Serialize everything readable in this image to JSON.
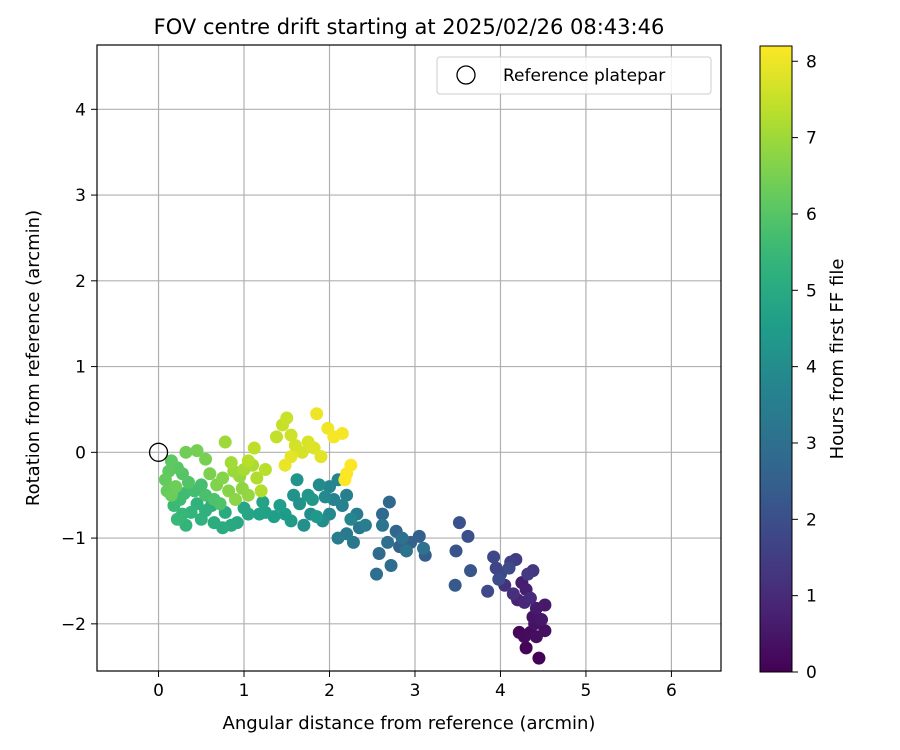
{
  "chart_data": {
    "type": "scatter",
    "title": "FOV centre drift starting at 2025/02/26 08:43:46",
    "xlabel": "Angular distance from reference (arcmin)",
    "ylabel": "Rotation from reference (arcmin)",
    "xlim": [
      -0.72,
      6.58
    ],
    "ylim": [
      -2.55,
      4.75
    ],
    "xticks": [
      0,
      1,
      2,
      3,
      4,
      5,
      6
    ],
    "yticks": [
      -2,
      -1,
      0,
      1,
      2,
      3,
      4
    ],
    "grid": true,
    "colormap": "viridis",
    "colorbar": {
      "label": "Hours from first FF file",
      "range": [
        0,
        8.2
      ],
      "ticks": [
        0,
        1,
        2,
        3,
        4,
        5,
        6,
        7,
        8
      ]
    },
    "legend": {
      "position": "upper-right",
      "entries": [
        {
          "label": "Reference platepar",
          "marker": "open-circle",
          "x": 0,
          "y": 0
        }
      ]
    },
    "points": [
      [
        4.45,
        -2.4,
        0.05
      ],
      [
        4.3,
        -2.28,
        0.1
      ],
      [
        4.22,
        -2.1,
        0.15
      ],
      [
        4.28,
        -2.15,
        0.2
      ],
      [
        4.35,
        -2.1,
        0.25
      ],
      [
        4.42,
        -2.15,
        0.3
      ],
      [
        4.52,
        -2.08,
        0.35
      ],
      [
        4.4,
        -2.0,
        0.4
      ],
      [
        4.38,
        -1.92,
        0.45
      ],
      [
        4.48,
        -1.95,
        0.5
      ],
      [
        4.52,
        -1.78,
        0.55
      ],
      [
        4.42,
        -1.82,
        0.6
      ],
      [
        4.25,
        -1.52,
        0.65
      ],
      [
        4.3,
        -1.6,
        0.7
      ],
      [
        4.2,
        -1.72,
        0.8
      ],
      [
        4.28,
        -1.75,
        0.9
      ],
      [
        4.35,
        -1.7,
        1.0
      ],
      [
        4.15,
        -1.65,
        1.1
      ],
      [
        4.05,
        -1.55,
        1.2
      ],
      [
        4.38,
        -1.38,
        1.3
      ],
      [
        4.32,
        -1.42,
        1.4
      ],
      [
        4.18,
        -1.25,
        1.5
      ],
      [
        4.12,
        -1.28,
        1.6
      ],
      [
        3.95,
        -1.35,
        1.7
      ],
      [
        4.0,
        -1.42,
        1.75
      ],
      [
        3.92,
        -1.22,
        1.8
      ],
      [
        3.85,
        -1.62,
        1.85
      ],
      [
        4.1,
        -1.35,
        1.9
      ],
      [
        3.98,
        -1.48,
        1.95
      ],
      [
        3.62,
        -0.98,
        2.0
      ],
      [
        3.52,
        -0.82,
        2.1
      ],
      [
        3.48,
        -1.15,
        2.15
      ],
      [
        3.65,
        -1.38,
        2.2
      ],
      [
        3.47,
        -1.55,
        2.3
      ],
      [
        3.12,
        -1.2,
        2.4
      ],
      [
        3.05,
        -0.98,
        2.5
      ],
      [
        2.95,
        -1.05,
        2.55
      ],
      [
        2.82,
        -1.1,
        2.6
      ],
      [
        2.78,
        -0.92,
        2.7
      ],
      [
        2.7,
        -0.58,
        2.75
      ],
      [
        2.62,
        -0.72,
        2.8
      ],
      [
        2.58,
        -1.18,
        2.85
      ],
      [
        2.72,
        -1.32,
        2.9
      ],
      [
        2.55,
        -1.42,
        2.95
      ],
      [
        2.68,
        -1.05,
        3.0
      ],
      [
        2.85,
        -1.0,
        3.05
      ],
      [
        3.1,
        -1.12,
        3.1
      ],
      [
        2.9,
        -1.15,
        3.15
      ],
      [
        2.62,
        -0.85,
        3.2
      ],
      [
        2.35,
        -0.88,
        3.25
      ],
      [
        2.28,
        -1.05,
        3.3
      ],
      [
        2.2,
        -0.95,
        3.35
      ],
      [
        2.1,
        -1.0,
        3.4
      ],
      [
        2.32,
        -0.72,
        3.45
      ],
      [
        2.42,
        -0.85,
        3.5
      ],
      [
        2.2,
        -0.5,
        3.55
      ],
      [
        2.15,
        -0.62,
        3.6
      ],
      [
        2.05,
        -0.55,
        3.65
      ],
      [
        2.0,
        -0.4,
        3.7
      ],
      [
        2.1,
        -0.32,
        3.75
      ],
      [
        2.25,
        -0.78,
        3.8
      ],
      [
        2.0,
        -0.72,
        3.85
      ],
      [
        1.95,
        -0.52,
        3.9
      ],
      [
        1.88,
        -0.38,
        3.95
      ],
      [
        1.92,
        -0.8,
        4.0
      ],
      [
        1.78,
        -0.72,
        4.05
      ],
      [
        1.7,
        -0.85,
        4.1
      ],
      [
        1.65,
        -0.6,
        4.15
      ],
      [
        1.58,
        -0.5,
        4.2
      ],
      [
        1.62,
        -0.32,
        4.25
      ],
      [
        1.75,
        -0.5,
        4.3
      ],
      [
        1.8,
        -0.55,
        4.35
      ],
      [
        1.85,
        -0.75,
        4.4
      ],
      [
        1.55,
        -0.8,
        4.45
      ],
      [
        1.48,
        -0.72,
        4.5
      ],
      [
        1.42,
        -0.62,
        4.55
      ],
      [
        1.35,
        -0.75,
        4.6
      ],
      [
        1.25,
        -0.7,
        4.65
      ],
      [
        1.18,
        -0.72,
        4.7
      ],
      [
        1.22,
        -0.58,
        4.75
      ],
      [
        1.05,
        -0.72,
        4.8
      ],
      [
        1.0,
        -0.65,
        4.85
      ],
      [
        0.92,
        -0.82,
        4.9
      ],
      [
        0.85,
        -0.85,
        4.95
      ],
      [
        0.78,
        -0.7,
        5.0
      ],
      [
        0.75,
        -0.88,
        5.05
      ],
      [
        0.65,
        -0.82,
        5.1
      ],
      [
        0.62,
        -0.62,
        5.15
      ],
      [
        0.55,
        -0.68,
        5.2
      ],
      [
        0.5,
        -0.78,
        5.25
      ],
      [
        0.45,
        -0.6,
        5.3
      ],
      [
        0.38,
        -0.7,
        5.35
      ],
      [
        0.32,
        -0.85,
        5.4
      ],
      [
        0.28,
        -0.72,
        5.45
      ],
      [
        0.22,
        -0.78,
        5.5
      ],
      [
        0.18,
        -0.62,
        5.55
      ],
      [
        0.25,
        -0.55,
        5.6
      ],
      [
        0.3,
        -0.48,
        5.65
      ],
      [
        0.42,
        -0.45,
        5.7
      ],
      [
        0.5,
        -0.38,
        5.75
      ],
      [
        0.55,
        -0.5,
        5.8
      ],
      [
        0.65,
        -0.55,
        5.85
      ],
      [
        0.72,
        -0.6,
        5.9
      ],
      [
        0.35,
        -0.35,
        5.95
      ],
      [
        0.28,
        -0.25,
        6.0
      ],
      [
        0.22,
        -0.18,
        6.05
      ],
      [
        0.15,
        -0.1,
        6.1
      ],
      [
        0.12,
        -0.22,
        6.15
      ],
      [
        0.08,
        -0.32,
        6.2
      ],
      [
        0.1,
        -0.45,
        6.25
      ],
      [
        0.15,
        -0.5,
        6.3
      ],
      [
        0.2,
        -0.4,
        6.35
      ],
      [
        0.32,
        0.0,
        6.4
      ],
      [
        0.45,
        0.02,
        6.45
      ],
      [
        0.55,
        -0.08,
        6.5
      ],
      [
        0.6,
        -0.25,
        6.55
      ],
      [
        0.68,
        -0.38,
        6.6
      ],
      [
        0.75,
        -0.3,
        6.65
      ],
      [
        0.82,
        -0.45,
        6.7
      ],
      [
        0.9,
        -0.55,
        6.75
      ],
      [
        0.98,
        -0.42,
        6.8
      ],
      [
        1.05,
        -0.5,
        6.85
      ],
      [
        0.95,
        -0.28,
        6.9
      ],
      [
        0.88,
        -0.22,
        6.95
      ],
      [
        0.78,
        0.12,
        7.0
      ],
      [
        0.85,
        -0.12,
        7.05
      ],
      [
        1.0,
        -0.2,
        7.1
      ],
      [
        1.1,
        -0.15,
        7.15
      ],
      [
        1.15,
        -0.3,
        7.2
      ],
      [
        1.2,
        -0.45,
        7.25
      ],
      [
        1.05,
        -0.1,
        7.3
      ],
      [
        1.25,
        -0.2,
        7.35
      ],
      [
        1.12,
        0.05,
        7.4
      ],
      [
        1.38,
        0.18,
        7.45
      ],
      [
        1.45,
        0.32,
        7.5
      ],
      [
        1.5,
        0.4,
        7.55
      ],
      [
        1.55,
        0.2,
        7.6
      ],
      [
        1.6,
        0.08,
        7.65
      ],
      [
        1.68,
        0.0,
        7.7
      ],
      [
        1.75,
        0.12,
        7.75
      ],
      [
        1.82,
        0.05,
        7.8
      ],
      [
        1.9,
        -0.05,
        7.85
      ],
      [
        1.55,
        -0.05,
        7.9
      ],
      [
        1.48,
        -0.15,
        7.95
      ],
      [
        1.85,
        0.45,
        8.0
      ],
      [
        1.98,
        0.28,
        8.05
      ],
      [
        2.05,
        0.18,
        8.1
      ],
      [
        2.15,
        0.22,
        8.12
      ],
      [
        2.2,
        -0.25,
        8.15
      ],
      [
        2.25,
        -0.15,
        8.18
      ],
      [
        2.18,
        -0.32,
        8.2
      ]
    ]
  }
}
